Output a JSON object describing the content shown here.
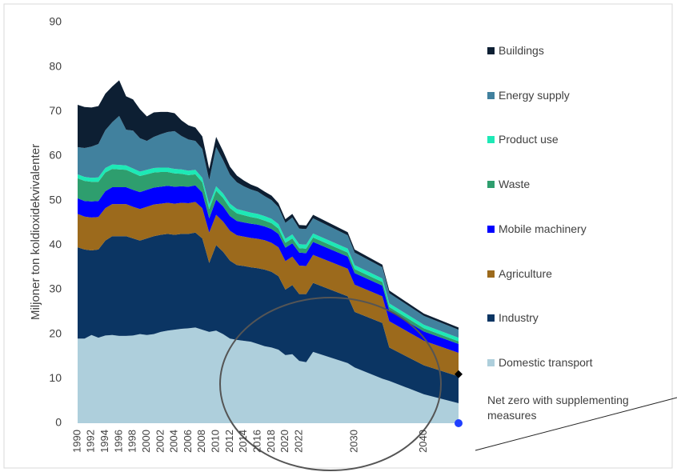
{
  "chart_data": {
    "type": "stacked_area",
    "y_label": "Miljoner ton koldioxidekvivalenter",
    "x": [
      1990,
      1991,
      1992,
      1993,
      1994,
      1995,
      1996,
      1997,
      1998,
      1999,
      2000,
      2001,
      2002,
      2003,
      2004,
      2005,
      2006,
      2007,
      2008,
      2009,
      2010,
      2011,
      2012,
      2013,
      2014,
      2015,
      2016,
      2017,
      2018,
      2019,
      2020,
      2021,
      2022,
      2023,
      2024,
      2029,
      2030,
      2034,
      2035,
      2040,
      2045
    ],
    "xlim": [
      1990,
      2045
    ],
    "xticks": [
      1990,
      1992,
      1994,
      1996,
      1998,
      2000,
      2002,
      2004,
      2006,
      2008,
      2010,
      2012,
      2014,
      2016,
      2018,
      2020,
      2022,
      2030,
      2040
    ],
    "ylim": [
      0,
      90
    ],
    "yticks": [
      0,
      10,
      20,
      30,
      40,
      50,
      60,
      70,
      80,
      90
    ],
    "grid": false,
    "legend": "right",
    "series": [
      {
        "name": "Domestic transport",
        "color": "#aecfdc",
        "values": [
          19,
          19,
          19.8,
          19.2,
          19.7,
          19.8,
          19.6,
          19.6,
          19.7,
          20,
          19.8,
          20,
          20.5,
          20.8,
          21,
          21.2,
          21.3,
          21.5,
          21,
          20.5,
          20.8,
          20,
          19,
          18.7,
          18.5,
          18.3,
          17.8,
          17.3,
          17,
          16.5,
          15.3,
          15.5,
          14,
          13.7,
          16,
          13.5,
          12.5,
          10,
          9.5,
          6.5,
          4.5
        ]
      },
      {
        "name": "Industry",
        "color": "#0b3563",
        "values": [
          20.5,
          20,
          19,
          19.8,
          21.3,
          22.2,
          22.4,
          22.4,
          21.8,
          21,
          21.7,
          22,
          21.8,
          21.7,
          21.3,
          21.3,
          21.2,
          21.3,
          20.5,
          15.5,
          19.2,
          18.5,
          17.5,
          16.8,
          16.8,
          16.7,
          17,
          17.2,
          17,
          16.5,
          14.7,
          15.5,
          15,
          15.3,
          15.5,
          15,
          12.5,
          12.5,
          7.5,
          6.5,
          6
        ]
      },
      {
        "name": "Agriculture",
        "color": "#9c6a1c",
        "values": [
          7.5,
          7.4,
          7.4,
          7.3,
          7.3,
          7.2,
          7.2,
          7.2,
          7.1,
          7.1,
          7.1,
          7.1,
          7,
          7,
          7,
          7,
          6.9,
          6.9,
          6.8,
          6.8,
          6.8,
          6.8,
          6.7,
          6.7,
          6.6,
          6.6,
          6.6,
          6.6,
          6.5,
          6.5,
          6.4,
          6.4,
          6.4,
          6.3,
          6.3,
          6.2,
          6.1,
          6,
          5.9,
          5.5,
          5.3
        ]
      },
      {
        "name": "Mobile machinery",
        "color": "#0000ff",
        "values": [
          3.5,
          3.5,
          3.6,
          3.6,
          3.8,
          3.8,
          3.8,
          3.8,
          3.8,
          3.8,
          3.8,
          3.8,
          3.8,
          3.8,
          3.8,
          3.7,
          3.7,
          3.7,
          3.5,
          3.2,
          3.4,
          3.4,
          3.3,
          3.2,
          3.2,
          3.2,
          3.2,
          3.1,
          3.1,
          3,
          3,
          3,
          2.9,
          2.9,
          2.9,
          2.7,
          2.6,
          2.4,
          2.4,
          2.1,
          2
        ]
      },
      {
        "name": "Waste",
        "color": "#2e9e6e",
        "values": [
          4.5,
          4.5,
          4.4,
          4.3,
          4.2,
          4.1,
          4,
          3.9,
          3.8,
          3.6,
          3.5,
          3.4,
          3.3,
          3.1,
          3,
          2.8,
          2.6,
          2.5,
          2.3,
          2.1,
          2,
          1.9,
          1.8,
          1.7,
          1.6,
          1.5,
          1.4,
          1.3,
          1.3,
          1.2,
          1.1,
          1.1,
          1,
          1,
          1,
          0.9,
          0.9,
          0.8,
          0.8,
          0.7,
          0.6
        ]
      },
      {
        "name": "Product use",
        "color": "#1de9b6",
        "values": [
          0.9,
          0.9,
          0.9,
          1,
          1,
          1,
          1,
          1,
          1,
          1,
          1,
          1,
          1,
          1,
          1,
          1,
          1,
          1,
          1,
          1,
          1,
          1,
          1,
          1,
          1,
          1,
          1,
          1,
          1,
          1,
          0.9,
          0.9,
          0.9,
          0.9,
          0.9,
          0.9,
          0.9,
          0.8,
          0.8,
          0.8,
          0.8
        ]
      },
      {
        "name": "Energy supply",
        "color": "#41819e",
        "values": [
          6.1,
          6.5,
          7,
          7.5,
          8.5,
          9.5,
          11,
          8,
          8.5,
          7.5,
          6.5,
          7,
          7.5,
          8,
          8.5,
          7.5,
          7,
          6.5,
          6.5,
          5.5,
          8.8,
          7.5,
          6.5,
          6,
          5.5,
          5.2,
          5,
          4.5,
          4.2,
          3.8,
          3.6,
          3.8,
          3.5,
          3.5,
          3.4,
          3,
          2.8,
          2.5,
          2.3,
          2,
          1.8
        ]
      },
      {
        "name": "Buildings",
        "color": "#0d1f33",
        "values": [
          9.5,
          9.2,
          8.8,
          8.5,
          8.2,
          8,
          8,
          7.5,
          7,
          6.5,
          5.5,
          5.5,
          5,
          4.5,
          4,
          3.5,
          3.2,
          3,
          2.8,
          2.5,
          2.3,
          2,
          1.8,
          1.5,
          1.3,
          1.1,
          1,
          1,
          1,
          0.9,
          0.8,
          0.8,
          0.8,
          0.8,
          0.8,
          0.7,
          0.7,
          0.6,
          0.6,
          0.5,
          0.5
        ]
      }
    ],
    "net_zero": {
      "name": "Net zero with supplementing measures",
      "points": [
        {
          "x": 2045,
          "y": 11,
          "color": "#000000",
          "marker": "diamond"
        },
        {
          "x": 2045,
          "y": 0,
          "color": "#1f3fff",
          "marker": "circle"
        }
      ]
    }
  }
}
